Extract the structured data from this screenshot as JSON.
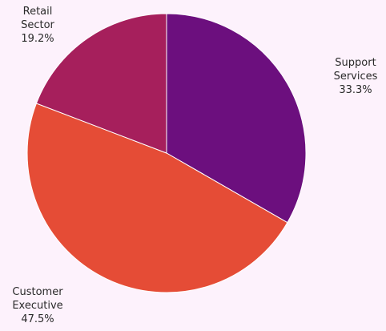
{
  "chart_data": {
    "type": "pie",
    "start_angle_deg": 0,
    "direction": "clockwise",
    "slices": [
      {
        "label": "Support Services",
        "label_lines": [
          "Support",
          "Services"
        ],
        "value_label": "33.3%",
        "value": 33.3,
        "color": "#6c0f7e"
      },
      {
        "label": "Customer Executive",
        "label_lines": [
          "Customer",
          "Executive"
        ],
        "value_label": "47.5%",
        "value": 47.5,
        "color": "#e54c36"
      },
      {
        "label": "Retail Sector",
        "label_lines": [
          "Retail",
          "Sector"
        ],
        "value_label": "19.2%",
        "value": 19.2,
        "color": "#a61f5c"
      }
    ]
  },
  "colors": {
    "background": "#fdf2fc",
    "slice_edge": "#ffffff"
  }
}
